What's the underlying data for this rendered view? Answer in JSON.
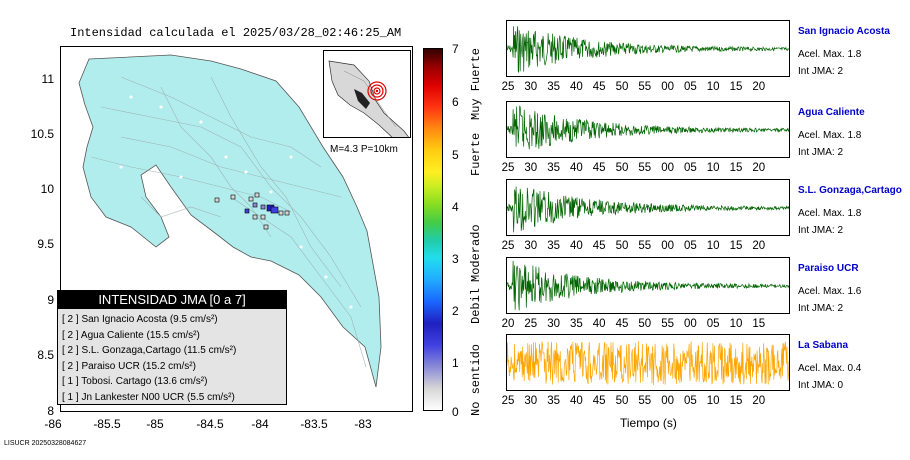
{
  "map": {
    "title": "Intensidad calculada el 2025/03/28_02:46:25_AM",
    "y_ticks": [
      "11",
      "10.5",
      "10",
      "9.5",
      "9",
      "8.5",
      "8"
    ],
    "x_ticks": [
      "-86",
      "-85.5",
      "-85",
      "-84.5",
      "-84",
      "-83.5",
      "-83"
    ],
    "inset_label": "M=4.3 P=10km",
    "land_color": "#b2eded"
  },
  "colorbar": {
    "ticks": [
      "7",
      "6",
      "5",
      "4",
      "3",
      "2",
      "1",
      "0"
    ],
    "categories": [
      "Muy Fuerte",
      "Fuerte",
      "Moderado",
      "Debil",
      "No sentido"
    ]
  },
  "legend": {
    "title": "INTENSIDAD JMA [0 a 7]",
    "items": [
      "[ 2 ]  San Ignacio Acosta (9.5 cm/s²)",
      "[ 2 ]  Agua Caliente (15.5 cm/s²)",
      "[ 2 ]  S.L. Gonzaga,Cartago (11.5 cm/s²)",
      "[ 2 ]  Paraiso UCR (15.2 cm/s²)",
      "[ 1 ]  Tobosi. Cartago (13.6 cm/s²)",
      "[ 1 ]  Jn Lankester N00 UCR (5.5 cm/s²)"
    ]
  },
  "stations": [
    {
      "name": "San Ignacio Acosta",
      "accel": "Acel. Max. 1.8",
      "jma": "Int JMA: 2",
      "color": "#006400",
      "ticks": [
        "25",
        "30",
        "35",
        "40",
        "45",
        "50",
        "55",
        "00",
        "05",
        "10",
        "15",
        "20"
      ]
    },
    {
      "name": "Agua Caliente",
      "accel": "Acel. Max. 1.8",
      "jma": "Int JMA: 2",
      "color": "#006400",
      "ticks": [
        "25",
        "30",
        "35",
        "40",
        "45",
        "50",
        "55",
        "00",
        "05",
        "10",
        "15",
        "20"
      ]
    },
    {
      "name": "S.L. Gonzaga,Cartago",
      "accel": "Acel. Max. 1.8",
      "jma": "Int JMA: 2",
      "color": "#006400",
      "ticks": [
        "25",
        "30",
        "35",
        "40",
        "45",
        "50",
        "55",
        "00",
        "05",
        "10",
        "15",
        "20"
      ]
    },
    {
      "name": "Paraiso UCR",
      "accel": "Acel. Max. 1.6",
      "jma": "Int JMA: 2",
      "color": "#006400",
      "ticks": [
        "20",
        "25",
        "30",
        "35",
        "40",
        "45",
        "50",
        "55",
        "00",
        "05",
        "10",
        "15"
      ]
    },
    {
      "name": "La Sabana",
      "accel": "Acel. Max. 0.4",
      "jma": "Int JMA: 0",
      "color": "#ffa500",
      "ticks": [
        "25",
        "30",
        "35",
        "40",
        "45",
        "50",
        "55",
        "00",
        "05",
        "10",
        "15",
        "20"
      ]
    }
  ],
  "x_axis_title": "Tiempo (s)",
  "footer_id": "LISUCR 20250328084627"
}
